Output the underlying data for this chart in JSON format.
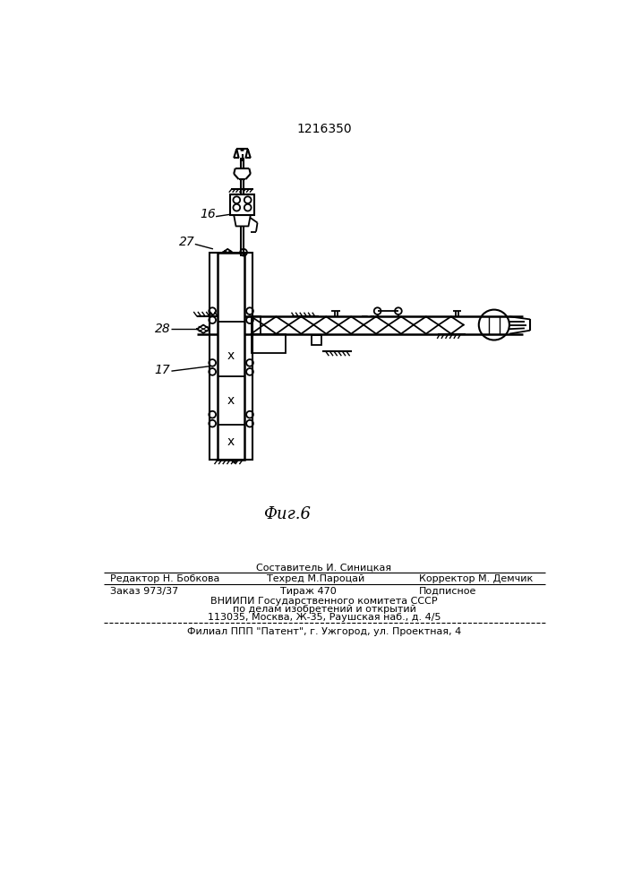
{
  "title": "1216350",
  "fig_label": "Фиг.6",
  "background_color": "#ffffff",
  "line_color": "#000000",
  "footer_above_line1": "Составитель И. Синицкая",
  "footer_line1_left": "Редактор Н. Бобкова",
  "footer_line1_center": "Техред М.Пароцай",
  "footer_line1_right": "Корректор М. Демчик",
  "footer_line2_col1": "Заказ 973/37",
  "footer_line2_col2": "Тираж 470",
  "footer_line2_col3": "Подписное",
  "footer_line3": "ВНИИПИ Государственного комитета СССР",
  "footer_line4": "по делам изобретений и открытий",
  "footer_line5": "113035, Москва, Ж-35, Раушская наб., д. 4/5",
  "footer_last": "Филиал ППП \"Патент\", г. Ужгород, ул. Проектная, 4",
  "label_16": "16",
  "label_27": "27",
  "label_28": "28",
  "label_17": "17"
}
